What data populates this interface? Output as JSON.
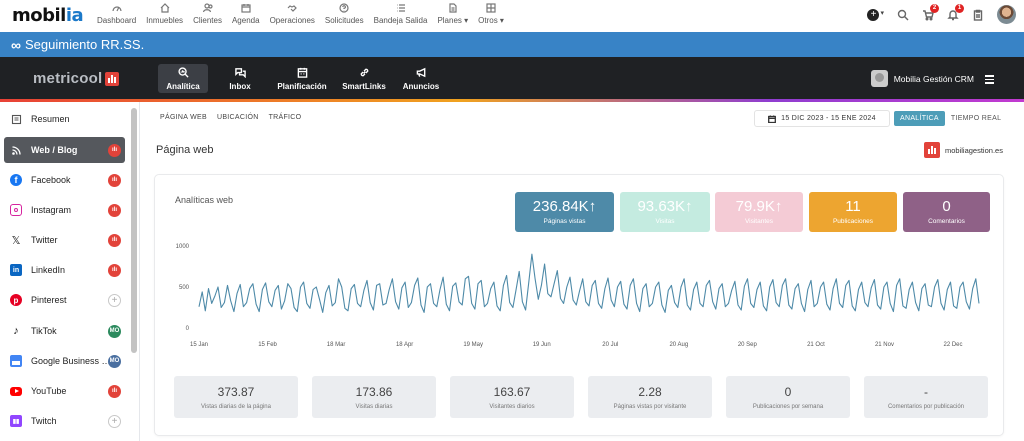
{
  "topnav": {
    "logo": {
      "main": "mobil",
      "accent": "ia"
    },
    "items": [
      {
        "label": "Dashboard",
        "icon": "gauge-icon"
      },
      {
        "label": "Inmuebles",
        "icon": "house-icon"
      },
      {
        "label": "Clientes",
        "icon": "users-icon"
      },
      {
        "label": "Agenda",
        "icon": "calendar-icon"
      },
      {
        "label": "Operaciones",
        "icon": "handshake-icon"
      },
      {
        "label": "Solicitudes",
        "icon": "question-icon"
      },
      {
        "label": "Bandeja Salida",
        "icon": "list-icon"
      },
      {
        "label": "Planes ▾",
        "icon": "document-icon"
      },
      {
        "label": "Otros ▾",
        "icon": "grid-icon"
      }
    ],
    "badges": {
      "cart": "2",
      "bell": "1"
    }
  },
  "banner": {
    "title": "Seguimiento RR.SS."
  },
  "metricool": {
    "logo": "metricool",
    "tabs": [
      {
        "label": "Analítica",
        "icon": "search-chart-icon",
        "active": true
      },
      {
        "label": "Inbox",
        "icon": "chat-icon",
        "active": false
      },
      {
        "label": "Planificación",
        "icon": "calendar-icon",
        "active": false
      },
      {
        "label": "SmartLinks",
        "icon": "link-icon",
        "active": false
      },
      {
        "label": "Anuncios",
        "icon": "megaphone-icon",
        "active": false
      }
    ],
    "user": "Mobilia Gestión CRM"
  },
  "sidebar": {
    "items": [
      {
        "label": "Resumen",
        "icon": "summary-icon",
        "color": "#555555",
        "mark": "none"
      },
      {
        "label": "Web / Blog",
        "icon": "rss-icon",
        "color": "#ffffff",
        "mark": "red",
        "active": true
      },
      {
        "label": "Facebook",
        "icon": "facebook-icon",
        "color": "#1877f2",
        "mark": "red"
      },
      {
        "label": "Instagram",
        "icon": "instagram-icon",
        "color": "#d6249f",
        "mark": "red"
      },
      {
        "label": "Twitter",
        "icon": "x-icon",
        "color": "#222222",
        "mark": "red"
      },
      {
        "label": "LinkedIn",
        "icon": "linkedin-icon",
        "color": "#0a66c2",
        "mark": "red"
      },
      {
        "label": "Pinterest",
        "icon": "pinterest-icon",
        "color": "#e60023",
        "mark": "add"
      },
      {
        "label": "TikTok",
        "icon": "tiktok-icon",
        "color": "#111111",
        "mark": "green",
        "mark_text": "MO"
      },
      {
        "label": "Google Business Profile",
        "icon": "google-business-icon",
        "color": "#4285f4",
        "mark": "blue",
        "mark_text": "MO"
      },
      {
        "label": "YouTube",
        "icon": "youtube-icon",
        "color": "#ff0000",
        "mark": "red"
      },
      {
        "label": "Twitch",
        "icon": "twitch-icon",
        "color": "#9146ff",
        "mark": "add"
      }
    ]
  },
  "main": {
    "subtabs": [
      "PÁGINA WEB",
      "UBICACIÓN",
      "TRÁFICO"
    ],
    "date_range": "15 DIC 2023 - 15 ENE 2024",
    "view_toggle": {
      "on": "ANALÍTICA",
      "off": "TIEMPO REAL"
    },
    "page_title": "Página web",
    "site": "mobiliagestion.es",
    "card_title": "Analíticas web",
    "kpis": [
      {
        "value": "236.84K",
        "arrow": "↑",
        "label": "Páginas vistas",
        "color": "#4e8aa8"
      },
      {
        "value": "93.63K",
        "arrow": "↑",
        "label": "Visitas",
        "color": "#c4ebe0"
      },
      {
        "value": "79.9K",
        "arrow": "↑",
        "label": "Visitantes",
        "color": "#f4cbd5"
      },
      {
        "value": "11",
        "arrow": "",
        "label": "Publicaciones",
        "color": "#eda530"
      },
      {
        "value": "0",
        "arrow": "",
        "label": "Comentarios",
        "color": "#8f6187"
      }
    ],
    "stats": [
      {
        "value": "373.87",
        "label": "Vistas diarias de la página"
      },
      {
        "value": "173.86",
        "label": "Visitas diarias"
      },
      {
        "value": "163.67",
        "label": "Visitantes diarios"
      },
      {
        "value": "2.28",
        "label": "Páginas vistas por visitante"
      },
      {
        "value": "0",
        "label": "Publicaciones por semana"
      },
      {
        "value": "-",
        "label": "Comentarios por publicación"
      }
    ]
  },
  "chart_data": {
    "type": "line",
    "title": "",
    "xlabel": "",
    "ylabel": "",
    "ylim": [
      0,
      1000
    ],
    "yticks": [
      0,
      500,
      1000
    ],
    "xticks": [
      "15 Jan",
      "15 Feb",
      "18 Mar",
      "18 Apr",
      "19 May",
      "19 Jun",
      "20 Jul",
      "20 Aug",
      "20 Sep",
      "21 Oct",
      "21 Nov",
      "22 Dec"
    ],
    "line_color": "#4e8aa8",
    "series": [
      {
        "values": [
          260,
          440,
          210,
          480,
          300,
          390,
          500,
          250,
          310,
          520,
          330,
          200,
          420,
          530,
          260,
          310,
          480,
          540,
          290,
          200,
          470,
          550,
          320,
          260,
          460,
          520,
          230,
          330,
          540,
          480,
          250,
          200,
          500,
          560,
          300,
          240,
          470,
          500,
          350,
          190,
          430,
          520,
          270,
          310,
          600,
          500,
          240,
          210,
          480,
          530,
          300,
          260,
          460,
          580,
          310,
          220,
          520,
          540,
          280,
          300,
          470,
          600,
          320,
          230,
          490,
          560,
          250,
          310,
          520,
          610,
          280,
          190,
          500,
          540,
          300,
          260,
          470,
          620,
          290,
          210,
          510,
          550,
          320,
          280,
          600,
          630,
          300,
          230,
          540,
          580,
          260,
          300,
          480,
          560,
          270,
          210,
          520,
          640,
          310,
          250,
          470,
          690,
          320,
          220,
          560,
          900,
          600,
          350,
          520,
          780,
          420,
          380,
          540,
          700,
          360,
          300,
          500,
          620,
          340,
          280,
          450,
          600,
          320,
          270,
          520,
          580,
          300,
          240,
          480,
          610,
          340,
          260,
          500,
          570,
          290,
          230,
          520,
          600,
          300,
          200,
          480,
          540,
          260,
          300,
          500,
          560,
          280,
          190,
          460,
          520,
          310,
          250,
          500,
          600,
          280,
          220,
          470,
          560,
          300,
          260,
          520,
          580,
          320,
          230,
          480,
          540,
          260,
          300,
          460,
          570,
          280,
          220,
          510,
          600,
          300,
          250,
          470,
          560,
          270,
          210,
          500,
          590,
          310,
          260,
          520,
          600,
          280,
          230,
          480,
          540,
          300,
          200,
          470,
          580,
          260,
          300,
          500,
          560,
          290,
          220,
          480,
          600,
          300,
          250,
          520,
          580,
          270,
          210,
          470,
          560,
          310,
          260,
          490,
          590,
          280,
          230,
          500,
          560,
          300,
          200,
          520,
          600,
          270,
          240,
          470,
          560,
          310,
          210,
          480,
          540,
          280,
          260,
          500,
          590,
          300,
          220,
          470,
          560,
          270,
          240,
          500,
          560,
          320,
          230,
          480,
          600,
          300
        ]
      }
    ]
  }
}
